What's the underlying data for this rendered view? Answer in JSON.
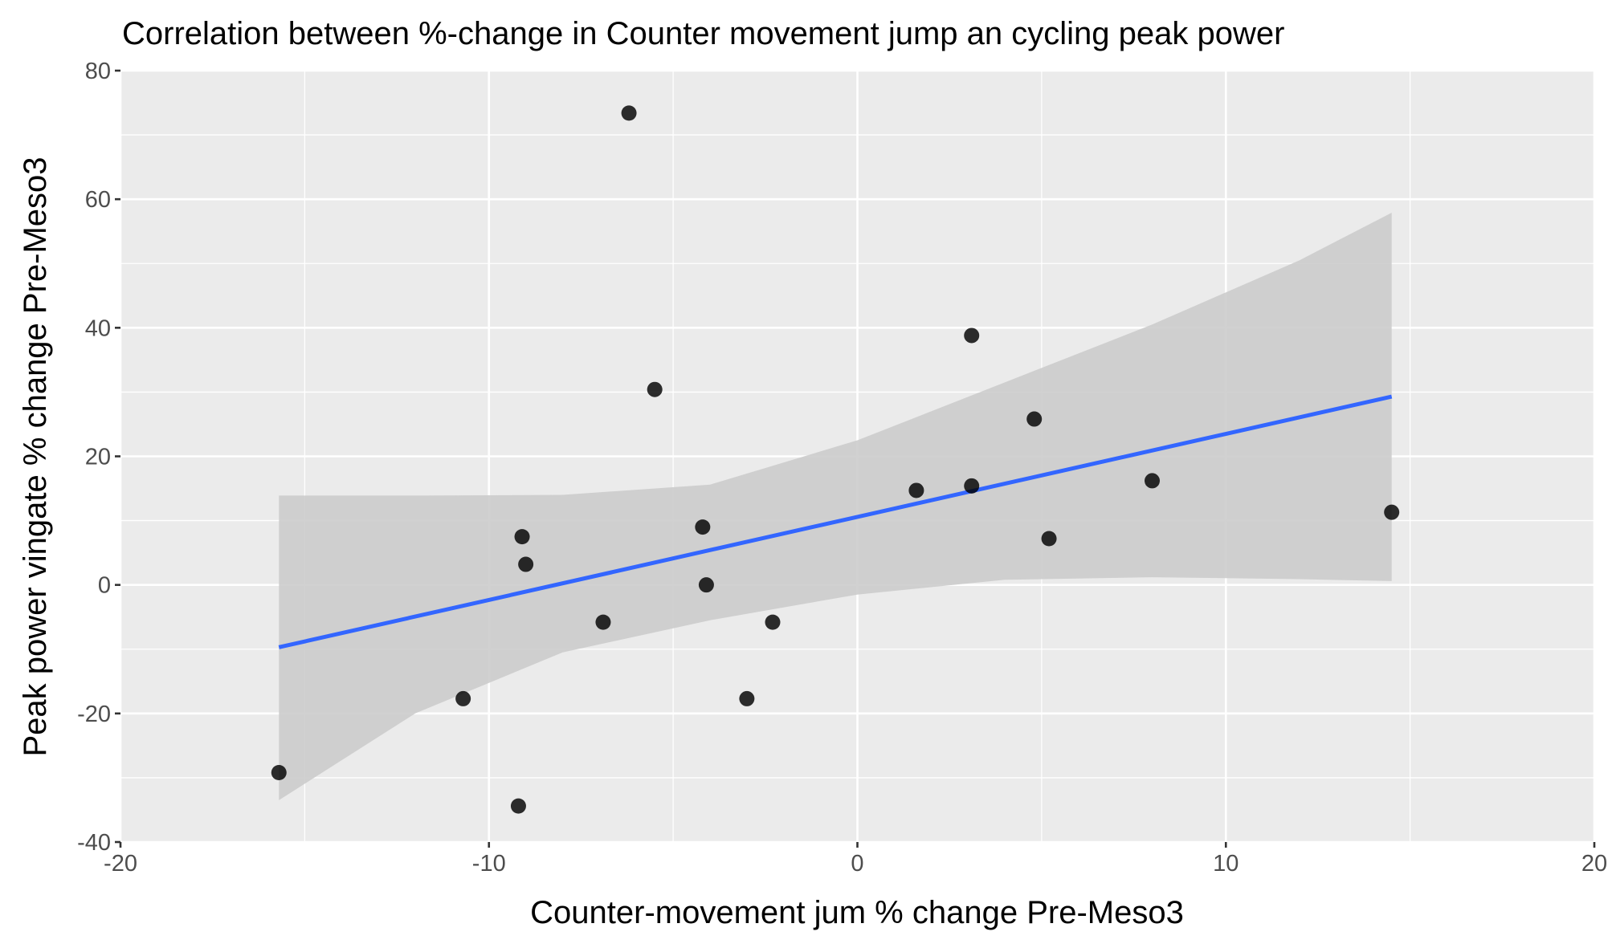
{
  "chart_data": {
    "type": "scatter",
    "title": "Correlation between %-change in Counter movement jump an cycling peak power",
    "xlabel": "Counter-movement jum % change Pre-Meso3",
    "ylabel": "Peak power vingate % change Pre-Meso3",
    "xlim": [
      -20,
      20
    ],
    "ylim": [
      -40,
      80
    ],
    "x_ticks": [
      -20,
      -10,
      0,
      10,
      20
    ],
    "y_ticks": [
      -40,
      -20,
      0,
      20,
      40,
      60,
      80
    ],
    "x_tick_labels": [
      "-20",
      "-10",
      "0",
      "10",
      "20"
    ],
    "y_tick_labels": [
      "-40",
      "-20",
      "0",
      "20",
      "40",
      "60",
      "80"
    ],
    "grid": true,
    "points": [
      {
        "x": -15.7,
        "y": -29.2
      },
      {
        "x": -10.7,
        "y": -17.7
      },
      {
        "x": -9.2,
        "y": -34.4
      },
      {
        "x": -9.1,
        "y": 7.5
      },
      {
        "x": -9.0,
        "y": 3.2
      },
      {
        "x": -6.9,
        "y": -5.8
      },
      {
        "x": -6.2,
        "y": 73.4
      },
      {
        "x": -5.5,
        "y": 30.4
      },
      {
        "x": -4.2,
        "y": 9.0
      },
      {
        "x": -4.1,
        "y": 0.0
      },
      {
        "x": -3.0,
        "y": -17.7
      },
      {
        "x": -2.3,
        "y": -5.8
      },
      {
        "x": 1.6,
        "y": 14.7
      },
      {
        "x": 3.1,
        "y": 38.8
      },
      {
        "x": 3.1,
        "y": 15.4
      },
      {
        "x": 4.8,
        "y": 25.8
      },
      {
        "x": 5.2,
        "y": 7.2
      },
      {
        "x": 8.0,
        "y": 16.2
      },
      {
        "x": 14.5,
        "y": 11.3
      }
    ],
    "trend_line": {
      "method": "linear",
      "x": [
        -15.7,
        14.5
      ],
      "y": [
        -9.7,
        29.3
      ],
      "color": "#3366FF"
    },
    "confidence_band": {
      "color": "#cccccc",
      "x": [
        -15.7,
        -12.0,
        -8.0,
        -4.0,
        0.0,
        4.0,
        8.0,
        12.0,
        14.5
      ],
      "lower": [
        -33.5,
        -20.0,
        -10.5,
        -5.5,
        -1.5,
        0.8,
        1.2,
        0.9,
        0.6
      ],
      "upper": [
        13.9,
        13.9,
        14.0,
        15.6,
        22.5,
        31.5,
        40.5,
        50.5,
        57.9
      ]
    },
    "colors": {
      "panel_background": "#ebebeb",
      "grid": "#ffffff",
      "point": "#000000",
      "trend": "#3366FF",
      "band": "#cccccc"
    }
  }
}
